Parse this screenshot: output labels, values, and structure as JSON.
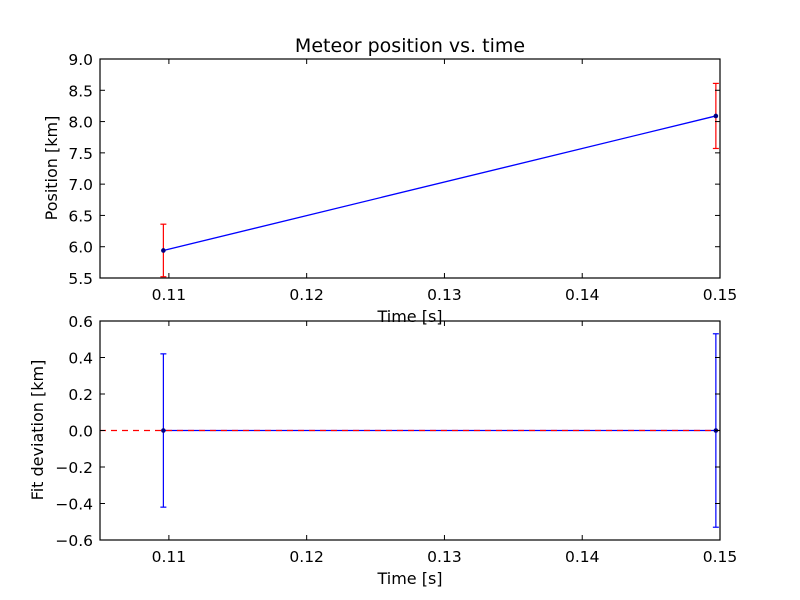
{
  "chart_data": [
    {
      "type": "line",
      "title": "Meteor position vs. time",
      "xlabel": "Time [s]",
      "ylabel": "Position [km]",
      "xlim": [
        0.105,
        0.15
      ],
      "ylim": [
        5.5,
        9.0
      ],
      "xticks": [
        "0.11",
        "0.12",
        "0.13",
        "0.14",
        "0.15"
      ],
      "yticks": [
        "5.5",
        "6.0",
        "6.5",
        "7.0",
        "7.5",
        "8.0",
        "8.5",
        "9.0"
      ],
      "grid": false,
      "series": [
        {
          "x": [
            0.1096,
            0.1497
          ],
          "values": [
            5.94,
            8.09
          ],
          "errors": [
            0.42,
            0.52
          ],
          "line_color": "#0000ff",
          "error_color": "#ff0000"
        }
      ]
    },
    {
      "type": "line",
      "title": "",
      "xlabel": "Time [s]",
      "ylabel": "Fit deviation [km]",
      "xlim": [
        0.105,
        0.15
      ],
      "ylim": [
        -0.6,
        0.6
      ],
      "xticks": [
        "0.11",
        "0.12",
        "0.13",
        "0.14",
        "0.15"
      ],
      "yticks": [
        "−0.6",
        "−0.4",
        "−0.2",
        "0.0",
        "0.2",
        "0.4",
        "0.6"
      ],
      "grid": false,
      "reference_line": {
        "y": 0.0,
        "style": "dashed",
        "color": "#ff0000"
      },
      "series": [
        {
          "x": [
            0.1096,
            0.1497
          ],
          "values": [
            0.0,
            0.0
          ],
          "errors": [
            0.42,
            0.53
          ],
          "line_color": "#0000ff",
          "error_color": "#0000ff"
        }
      ]
    }
  ]
}
